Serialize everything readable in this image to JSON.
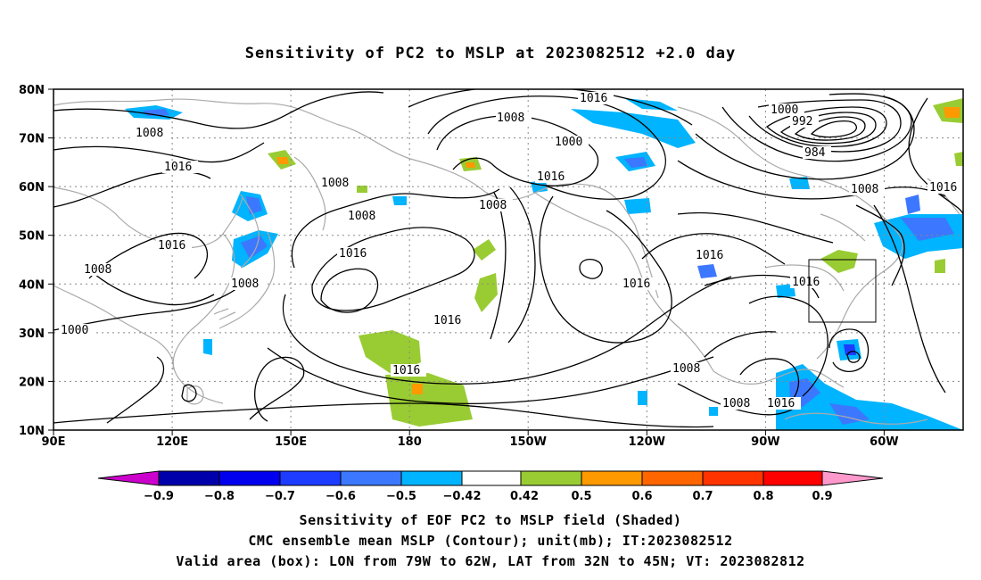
{
  "title": "Sensitivity of PC2 to MSLP at 2023082512 +2.0 day",
  "lat_labels": [
    "80N",
    "70N",
    "60N",
    "50N",
    "40N",
    "30N",
    "20N",
    "10N"
  ],
  "lon_labels": [
    "90E",
    "120E",
    "150E",
    "180",
    "150W",
    "120W",
    "90W",
    "60W"
  ],
  "contour_labels": [
    "1016",
    "1008",
    "1000",
    "992",
    "984",
    "1008",
    "1016",
    "1008",
    "1000",
    "1016",
    "1008",
    "1008",
    "1008",
    "1016",
    "1016",
    "1016",
    "1008",
    "1016",
    "1016",
    "1000",
    "1016",
    "1016",
    "1016",
    "1008",
    "1008",
    "1008",
    "1016",
    "1008"
  ],
  "colorbar": {
    "colors": [
      "#cc00cc",
      "#0000aa",
      "#0000ee",
      "#1e3cff",
      "#3c78ff",
      "#00b4ff",
      "#ffffff",
      "#99cc33",
      "#ff9900",
      "#ff6600",
      "#ff3300",
      "#ff0000",
      "#ff99cc"
    ],
    "labels": [
      "−0.9",
      "−0.8",
      "−0.7",
      "−0.6",
      "−0.5",
      "−0.42",
      "0.42",
      "0.5",
      "0.6",
      "0.7",
      "0.8",
      "0.9"
    ]
  },
  "captions": {
    "line1": "Sensitivity of EOF PC2 to MSLP field (Shaded)",
    "line2": "CMC ensemble mean MSLP (Contour); unit(mb); IT:2023082512",
    "line3": "Valid area (box): LON from 79W to 62W, LAT from 32N to 45N; VT: 2023082812"
  },
  "valid_box": {
    "lon_from": -79,
    "lon_to": -62,
    "lat_from": 32,
    "lat_to": 45
  }
}
